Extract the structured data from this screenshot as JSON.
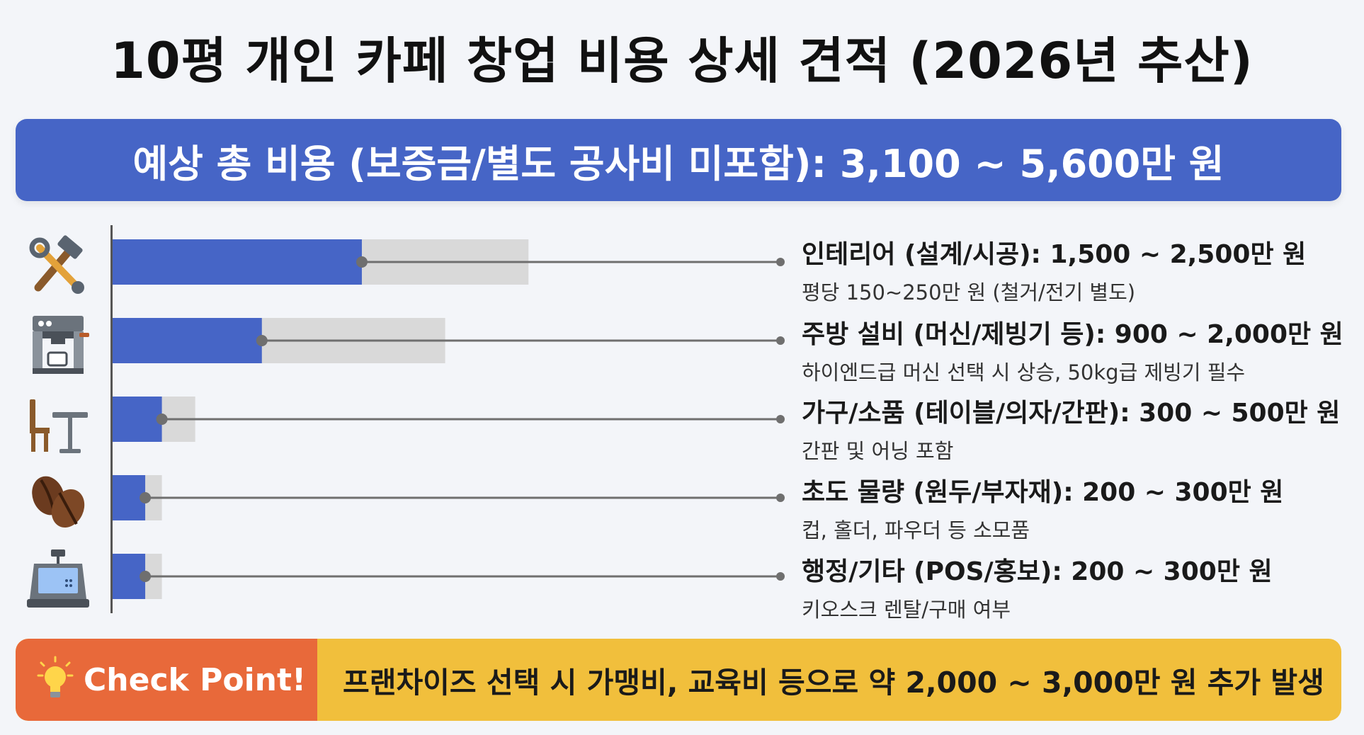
{
  "title": "10평 개인 카페 창업 비용 상세 견적 (2026년 추산)",
  "banner": "예상 총 비용 (보증금/별도 공사비 미포함): 3,100 ~ 5,600만 원",
  "colors": {
    "accent": "#4665c6",
    "range": "#d9d9d9",
    "footer_left": "#e8693a",
    "footer_right": "#f1bf3c"
  },
  "chart_data": {
    "type": "bar",
    "orientation": "horizontal",
    "unit": "만 원",
    "categories": [
      "인테리어 (설계/시공)",
      "주방 설비 (머신/제빙기 등)",
      "가구/소품 (테이블/의자/간판)",
      "초도 물량 (원두/부자재)",
      "행정/기타 (POS/홍보)"
    ],
    "series": [
      {
        "values": [
          1500,
          900,
          300,
          200,
          200
        ]
      },
      {
        "values": [
          2500,
          2000,
          500,
          300,
          300
        ]
      }
    ],
    "xlim": [
      0,
      4250
    ],
    "grid": false,
    "legend": "none",
    "items": [
      {
        "label": "인테리어 (설계/시공): 1,500 ~ 2,500만 원",
        "note": "평당 150~250만 원 (철거/전기 별도)",
        "icon": "hammer-wrench-icon"
      },
      {
        "label": "주방 설비 (머신/제빙기 등): 900 ~ 2,000만 원",
        "note": "하이엔드급 머신 선택 시 상승, 50kg급 제빙기 필수",
        "icon": "espresso-machine-icon"
      },
      {
        "label": "가구/소품 (테이블/의자/간판): 300 ~ 500만 원",
        "note": "간판 및 어닝 포함",
        "icon": "table-chair-icon"
      },
      {
        "label": "초도 물량 (원두/부자재): 200 ~ 300만 원",
        "note": "컵, 홀더, 파우더 등 소모품",
        "icon": "coffee-beans-icon"
      },
      {
        "label": "행정/기타 (POS/홍보): 200 ~ 300만 원",
        "note": "키오스크 렌탈/구매 여부",
        "icon": "pos-terminal-icon"
      }
    ]
  },
  "footer": {
    "badge": "Check Point!",
    "icon": "lightbulb-icon",
    "text": "프랜차이즈 선택 시 가맹비, 교육비 등으로 약 2,000 ~ 3,000만 원 추가 발생"
  }
}
